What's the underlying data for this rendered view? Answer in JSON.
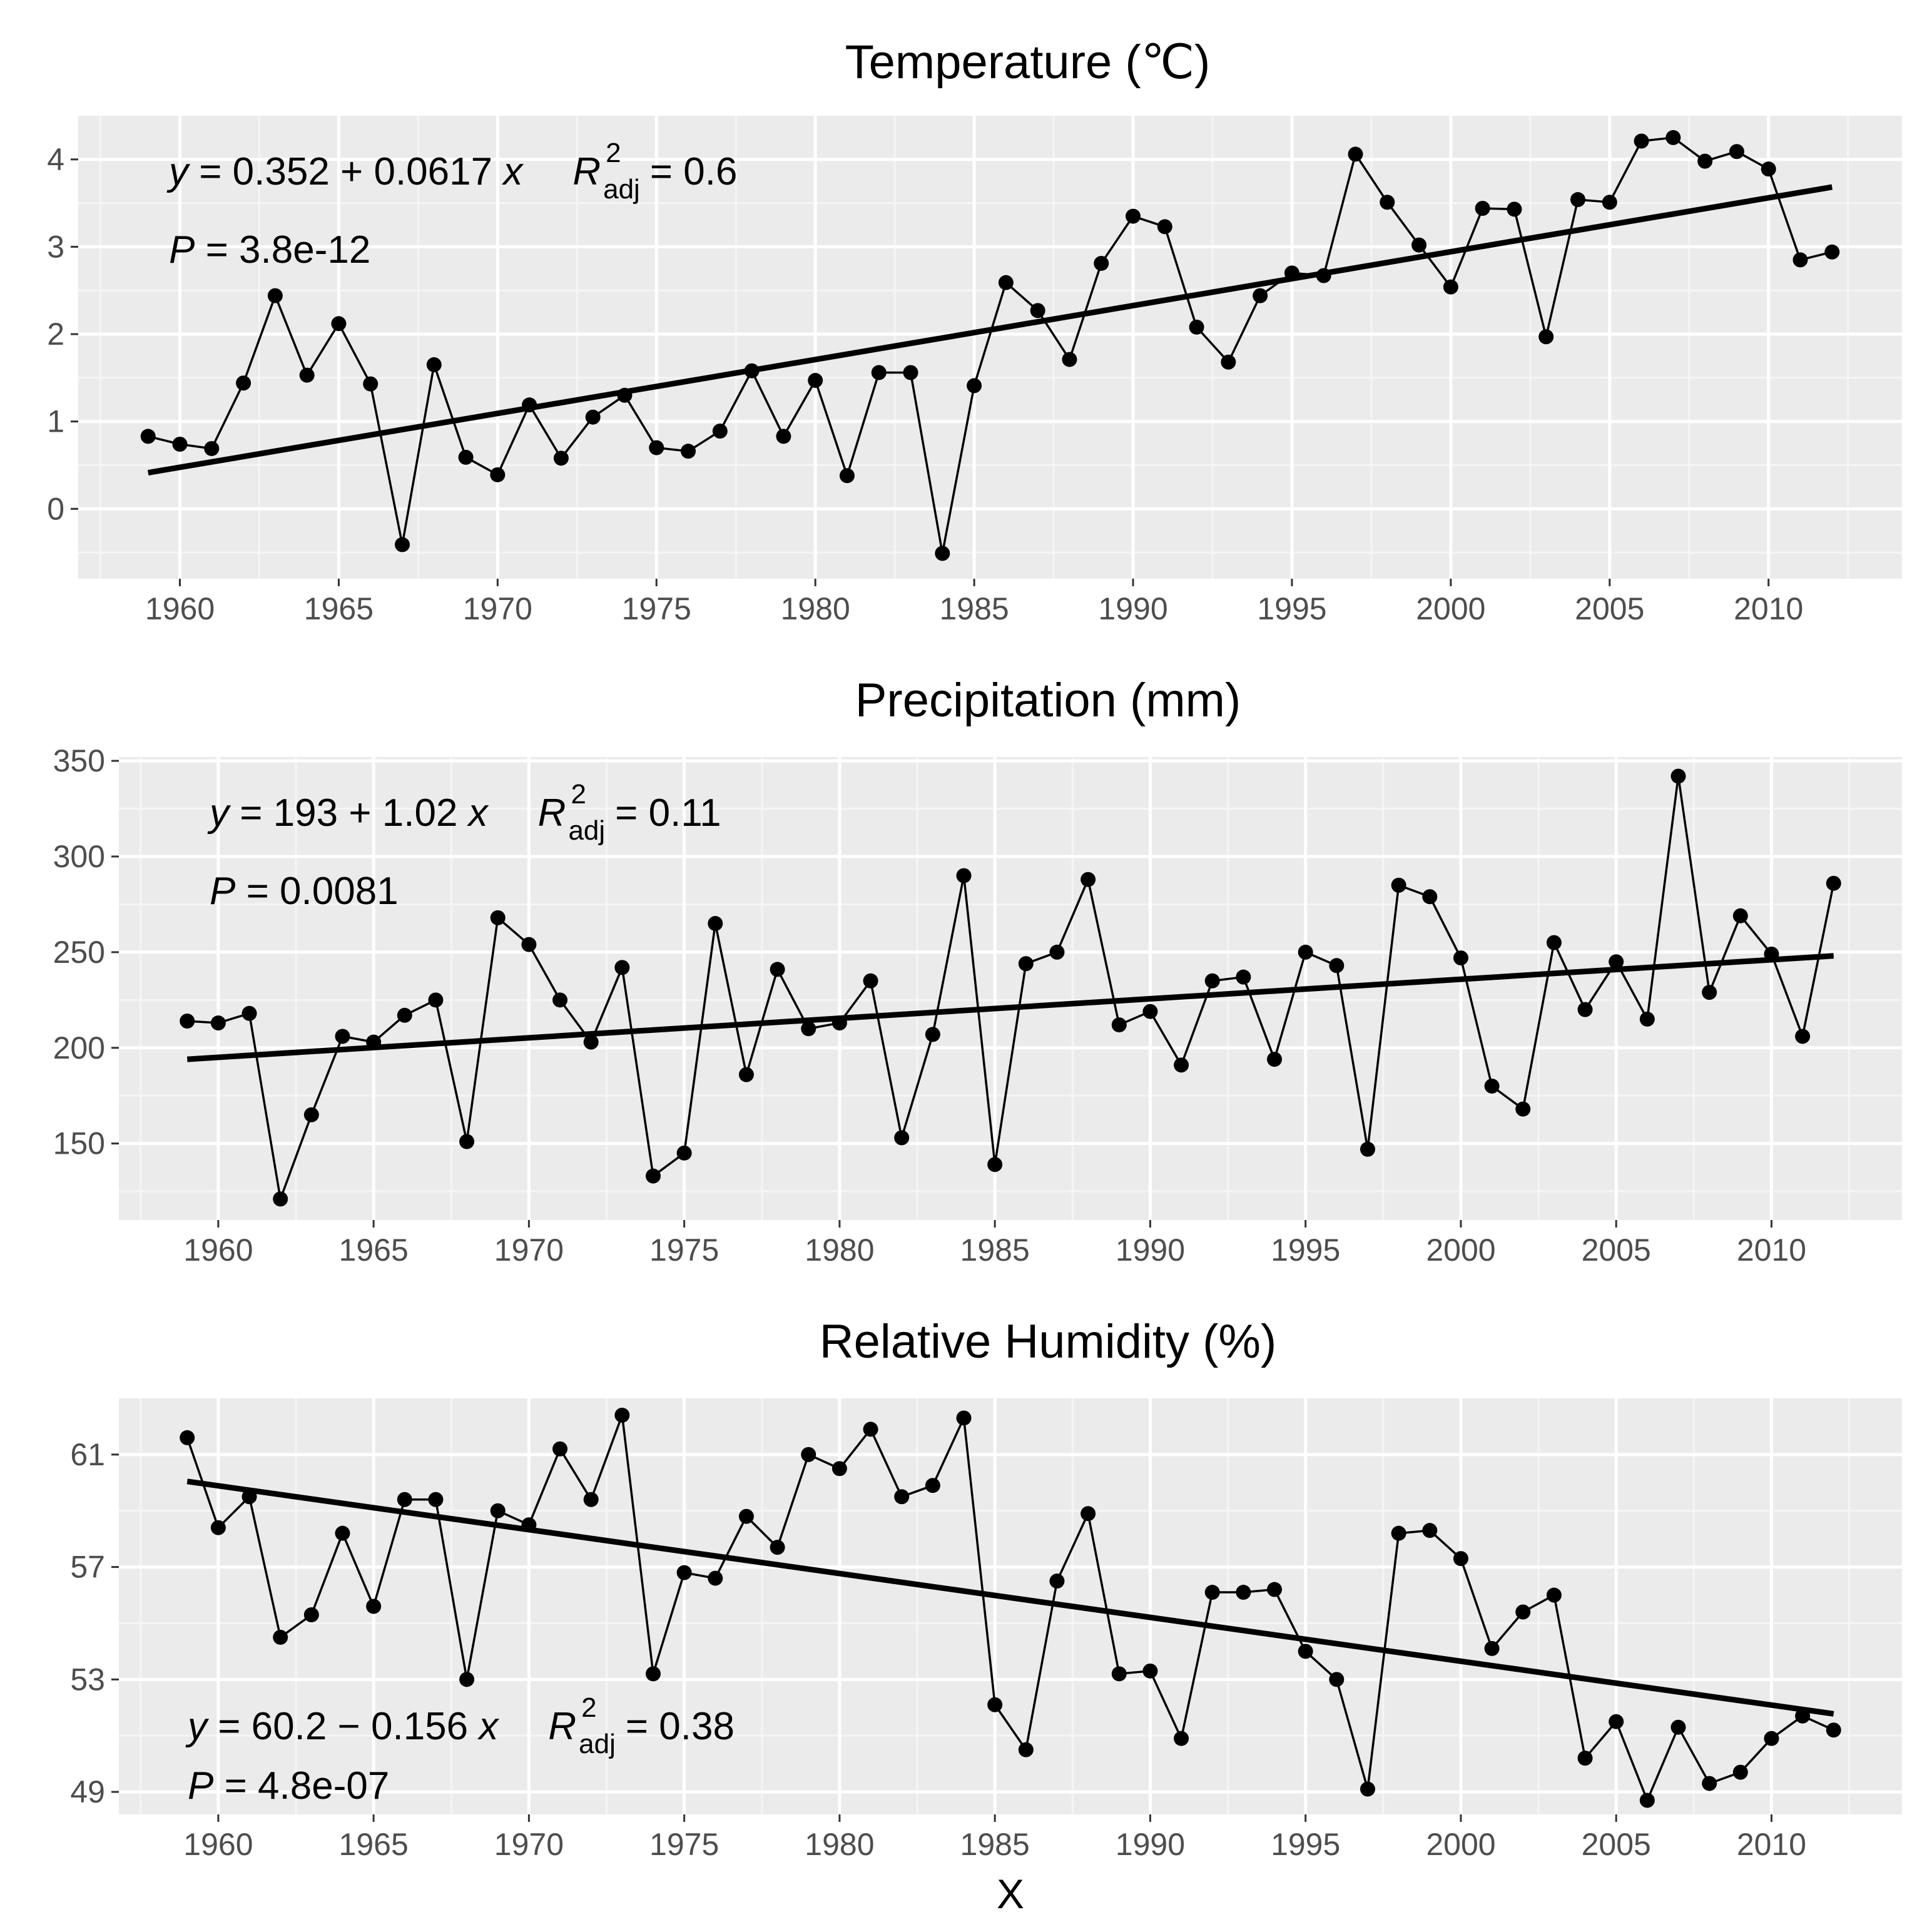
{
  "chart_data": [
    {
      "type": "line",
      "title": "Temperature (℃)",
      "xlabel": "",
      "ylabel": "",
      "x": [
        1959,
        1960,
        1961,
        1962,
        1963,
        1964,
        1965,
        1966,
        1967,
        1968,
        1969,
        1970,
        1971,
        1972,
        1973,
        1974,
        1975,
        1976,
        1977,
        1978,
        1979,
        1980,
        1981,
        1982,
        1983,
        1984,
        1985,
        1986,
        1987,
        1988,
        1989,
        1990,
        1991,
        1992,
        1993,
        1994,
        1995,
        1996,
        1997,
        1998,
        1999,
        2000,
        2001,
        2002,
        2003,
        2004,
        2005,
        2006,
        2007,
        2008,
        2009,
        2010,
        2011,
        2012
      ],
      "values": [
        0.83,
        0.74,
        0.69,
        1.44,
        2.44,
        1.53,
        2.12,
        1.43,
        -0.41,
        1.65,
        0.59,
        0.39,
        1.19,
        0.58,
        1.05,
        1.3,
        0.7,
        0.66,
        0.89,
        1.58,
        0.83,
        1.47,
        0.38,
        1.56,
        1.56,
        -0.51,
        1.41,
        2.59,
        2.27,
        1.71,
        2.81,
        3.35,
        3.23,
        2.08,
        1.68,
        2.44,
        2.7,
        2.67,
        4.06,
        3.51,
        3.02,
        2.54,
        3.44,
        3.43,
        1.97,
        3.54,
        3.51,
        4.21,
        4.25,
        3.98,
        4.09,
        3.89,
        2.85,
        2.94
      ],
      "trend": {
        "intercept": 0.352,
        "slope": 0.0617,
        "x0": 1958
      },
      "xlim": [
        1956.8,
        2014.2
      ],
      "ylim": [
        -0.8,
        4.5
      ],
      "xticks": [
        1960,
        1965,
        1970,
        1975,
        1980,
        1985,
        1990,
        1995,
        2000,
        2005,
        2010
      ],
      "yticks": [
        0,
        1,
        2,
        3,
        4
      ],
      "xticklabels": [
        "1960",
        "1965",
        "1970",
        "1975",
        "1980",
        "1985",
        "1990",
        "1995",
        "2000",
        "2005",
        "2010"
      ],
      "yticklabels": [
        "0",
        "1",
        "2",
        "3",
        "4"
      ],
      "annotation": {
        "eq": "y = 0.352 + 0.0617 x",
        "r2_label": "R",
        "r2_sup": "2",
        "r2_sub": "adj",
        "r2_value": "= 0.6",
        "p": "P = 3.8e-12"
      }
    },
    {
      "type": "line",
      "title": "Precipitation (mm)",
      "xlabel": "",
      "ylabel": "",
      "x": [
        1959,
        1960,
        1961,
        1962,
        1963,
        1964,
        1965,
        1966,
        1967,
        1968,
        1969,
        1970,
        1971,
        1972,
        1973,
        1974,
        1975,
        1976,
        1977,
        1978,
        1979,
        1980,
        1981,
        1982,
        1983,
        1984,
        1985,
        1986,
        1987,
        1988,
        1989,
        1990,
        1991,
        1992,
        1993,
        1994,
        1995,
        1996,
        1997,
        1998,
        1999,
        2000,
        2001,
        2002,
        2003,
        2004,
        2005,
        2006,
        2007,
        2008,
        2009,
        2010,
        2011,
        2012
      ],
      "values": [
        214,
        213,
        218,
        121,
        165,
        206,
        203,
        217,
        225,
        151,
        268,
        254,
        225,
        203,
        242,
        133,
        145,
        265,
        186,
        241,
        210,
        213,
        235,
        153,
        207,
        290,
        139,
        244,
        250,
        288,
        212,
        219,
        191,
        235,
        237,
        194,
        250,
        243,
        147,
        285,
        279,
        247,
        180,
        168,
        255,
        220,
        245,
        215,
        342,
        229,
        269,
        249,
        206,
        286
      ],
      "trend": {
        "intercept": 193,
        "slope": 1.02,
        "x0": 1958
      },
      "xlim": [
        1956.8,
        2014.2
      ],
      "ylim": [
        110,
        352
      ],
      "xticks": [
        1960,
        1965,
        1970,
        1975,
        1980,
        1985,
        1990,
        1995,
        2000,
        2005,
        2010
      ],
      "yticks": [
        150,
        200,
        250,
        300,
        350
      ],
      "xticklabels": [
        "1960",
        "1965",
        "1970",
        "1975",
        "1980",
        "1985",
        "1990",
        "1995",
        "2000",
        "2005",
        "2010"
      ],
      "yticklabels": [
        "150",
        "200",
        "250",
        "300",
        "350"
      ],
      "annotation": {
        "eq": "y = 193 + 1.02 x",
        "r2_label": "R",
        "r2_sup": "2",
        "r2_sub": "adj",
        "r2_value": "= 0.11",
        "p": "P = 0.0081"
      }
    },
    {
      "type": "line",
      "title": "Relative Humidity (%)",
      "xlabel": "X",
      "ylabel": "",
      "x": [
        1959,
        1960,
        1961,
        1962,
        1963,
        1964,
        1965,
        1966,
        1967,
        1968,
        1969,
        1970,
        1971,
        1972,
        1973,
        1974,
        1975,
        1976,
        1977,
        1978,
        1979,
        1980,
        1981,
        1982,
        1983,
        1984,
        1985,
        1986,
        1987,
        1988,
        1989,
        1990,
        1991,
        1992,
        1993,
        1994,
        1995,
        1996,
        1997,
        1998,
        1999,
        2000,
        2001,
        2002,
        2003,
        2004,
        2005,
        2006,
        2007,
        2008,
        2009,
        2010,
        2011,
        2012
      ],
      "values": [
        61.6,
        58.4,
        59.5,
        54.5,
        55.3,
        58.2,
        55.6,
        59.4,
        59.4,
        53.0,
        59.0,
        58.5,
        61.2,
        59.4,
        62.4,
        53.2,
        56.8,
        56.6,
        58.8,
        57.7,
        61.0,
        60.5,
        61.9,
        59.5,
        59.9,
        62.3,
        52.1,
        50.5,
        56.5,
        58.9,
        53.2,
        53.3,
        50.9,
        56.1,
        56.1,
        56.2,
        54.0,
        53.0,
        49.1,
        58.2,
        58.3,
        57.3,
        54.1,
        55.4,
        56.0,
        50.2,
        51.5,
        48.7,
        51.3,
        49.3,
        49.7,
        50.9,
        51.7,
        51.2
      ],
      "trend": {
        "intercept": 60.2,
        "slope": -0.156,
        "x0": 1958
      },
      "xlim": [
        1956.8,
        2014.2
      ],
      "ylim": [
        48.2,
        63.0
      ],
      "xticks": [
        1960,
        1965,
        1970,
        1975,
        1980,
        1985,
        1990,
        1995,
        2000,
        2005,
        2010
      ],
      "yticks": [
        49,
        53,
        57,
        61
      ],
      "xticklabels": [
        "1960",
        "1965",
        "1970",
        "1975",
        "1980",
        "1985",
        "1990",
        "1995",
        "2000",
        "2005",
        "2010"
      ],
      "yticklabels": [
        "49",
        "53",
        "57",
        "61"
      ],
      "annotation": {
        "eq": "y = 60.2 − 0.156 x",
        "r2_label": "R",
        "r2_sup": "2",
        "r2_sub": "adj",
        "r2_value": "= 0.38",
        "p": "P = 4.8e-07"
      }
    }
  ],
  "colors": {
    "panel_bg": "#ebebeb",
    "grid_major": "#ffffff",
    "grid_minor": "#f5f5f5",
    "line": "#000000",
    "tick_text": "#4d4d4d"
  }
}
